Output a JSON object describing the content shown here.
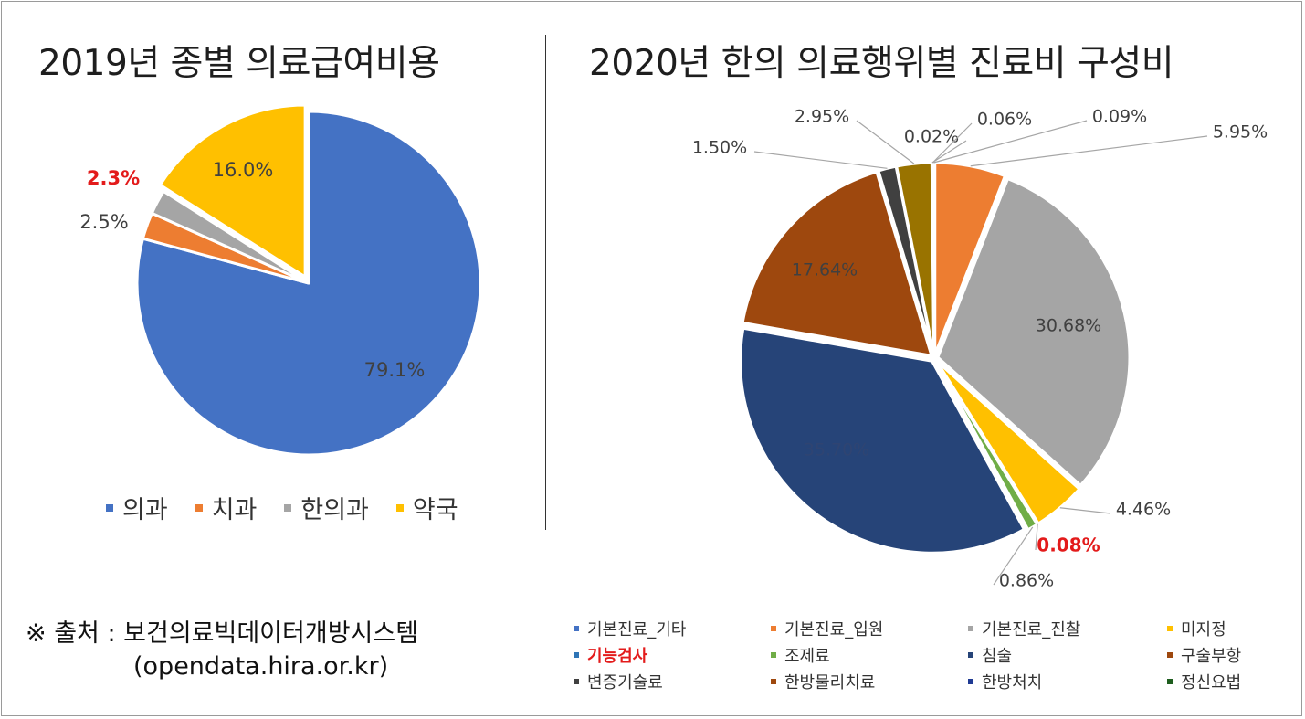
{
  "chart_data": [
    {
      "type": "pie",
      "title": "2019년 종별 의료급여비용",
      "categories": [
        "의과",
        "치과",
        "한의과",
        "약국"
      ],
      "values": [
        79.1,
        2.5,
        2.3,
        16.0
      ],
      "labels": [
        "79.1%",
        "2.5%",
        "2.3%",
        "16.0%"
      ],
      "highlight_label": "2.3%",
      "colors": [
        "#4472c4",
        "#ed7d31",
        "#a5a5a5",
        "#ffc000"
      ],
      "legend_position": "bottom"
    },
    {
      "type": "pie",
      "title": "2020년 한의 의료행위별 진료비 구성비",
      "categories": [
        "기본진료_기타",
        "기본진료_입원",
        "기본진료_진찰",
        "미지정",
        "기능검사",
        "조제료",
        "침술",
        "구술부항",
        "변증기술료",
        "한방물리치료",
        "한방처치",
        "정신요법"
      ],
      "slices": [
        {
          "name": "기본진료_입원",
          "value": 5.95,
          "label": "5.95%",
          "color": "#ed7d31"
        },
        {
          "name": "기본진료_진찰",
          "value": 30.68,
          "label": "30.68%",
          "color": "#a5a5a5"
        },
        {
          "name": "미지정",
          "value": 4.46,
          "label": "4.46%",
          "color": "#ffc000"
        },
        {
          "name": "기능검사",
          "value": 0.08,
          "label": "0.08%",
          "color": "#2e75b6"
        },
        {
          "name": "조제료",
          "value": 0.86,
          "label": "0.86%",
          "color": "#70ad47"
        },
        {
          "name": "침술",
          "value": 35.7,
          "label": "35.70%",
          "color": "#264478"
        },
        {
          "name": "한방물리치료",
          "value": 17.64,
          "label": "17.64%",
          "color": "#9e480e"
        },
        {
          "name": "변증기술료",
          "value": 1.5,
          "label": "1.50%",
          "color": "#404040"
        },
        {
          "name": "구술부항",
          "value": 2.95,
          "label": "2.95%",
          "color": "#997300"
        },
        {
          "name": "정신요법",
          "value": 0.02,
          "label": "0.02%",
          "color": "#1e5d1e"
        },
        {
          "name": "한방처치",
          "value": 0.06,
          "label": "0.06%",
          "color": "#1f3a93"
        },
        {
          "name": "기본진료_기타",
          "value": 0.09,
          "label": "0.09%",
          "color": "#4472c4"
        }
      ],
      "highlight_label": "0.08%",
      "highlight_legend": "기능검사",
      "legend_colors": [
        "#4472c4",
        "#ed7d31",
        "#a5a5a5",
        "#ffc000",
        "#2e75b6",
        "#70ad47",
        "#264478",
        "#9e480e",
        "#404040",
        "#9e480e",
        "#1f3a93",
        "#1e5d1e"
      ],
      "legend_position": "bottom"
    }
  ],
  "source": {
    "line1": "※ 출처 : 보건의료빅데이터개방시스템",
    "line2": "(opendata.hira.or.kr)"
  }
}
